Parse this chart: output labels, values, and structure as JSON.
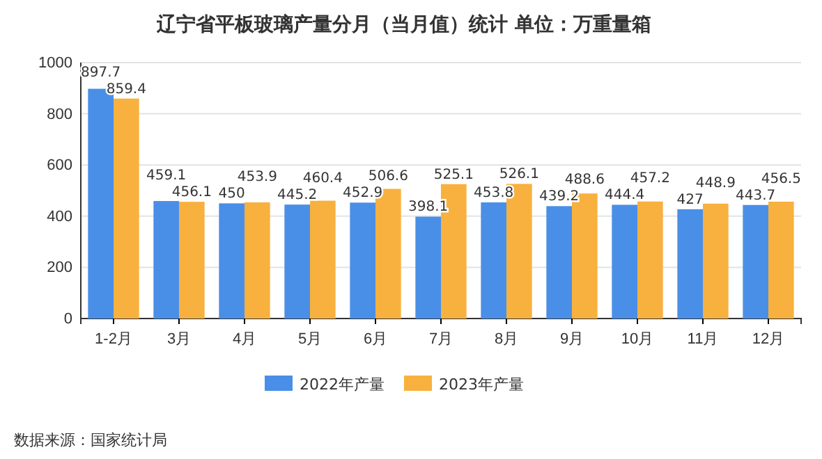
{
  "chart_data": {
    "type": "bar",
    "title": "辽宁省平板玻璃产量分月（当月值）统计  单位：万重量箱",
    "categories": [
      "1-2月",
      "3月",
      "4月",
      "5月",
      "6月",
      "7月",
      "8月",
      "9月",
      "10月",
      "11月",
      "12月"
    ],
    "series": [
      {
        "name": "2022年产量",
        "color": "#4a8fe7",
        "values": [
          897.7,
          459.1,
          450,
          445.2,
          452.9,
          398.1,
          453.8,
          439.2,
          444.4,
          427,
          443.7
        ]
      },
      {
        "name": "2023年产量",
        "color": "#f8b13e",
        "values": [
          859.4,
          456.1,
          453.9,
          460.4,
          506.6,
          525.1,
          526.1,
          488.6,
          457.2,
          448.9,
          456.5
        ]
      }
    ],
    "ylim": [
      0,
      1000
    ],
    "yticks": [
      0,
      200,
      400,
      600,
      800,
      1000
    ],
    "grid": "y",
    "legend": "bottom",
    "data_labels": true,
    "annotations": [
      "数据来源：国家统计局"
    ]
  }
}
